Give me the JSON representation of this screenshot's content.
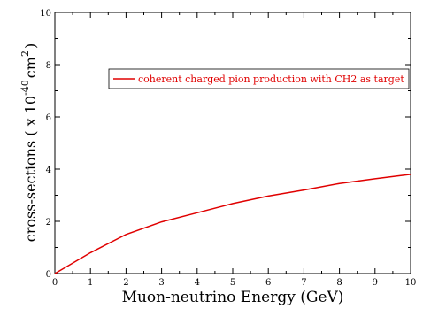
{
  "chart_data": {
    "type": "line",
    "xlabel": "Muon-neutrino Energy (GeV)",
    "ylabel": {
      "prefix": "cross-sections ( x 10",
      "exp1": "-40",
      "unit": "cm",
      "exp2": "2",
      "suffix": ")"
    },
    "xlim": [
      0,
      10
    ],
    "ylim": [
      0,
      10
    ],
    "xticks": [
      0,
      1,
      2,
      3,
      4,
      5,
      6,
      7,
      8,
      9,
      10
    ],
    "yticks": [
      0,
      2,
      4,
      6,
      8,
      10
    ],
    "grid": false,
    "legend_position": "upper-right",
    "series": [
      {
        "name": "coherent charged pion production with CH2 as target",
        "color": "#e00000",
        "x": [
          0,
          1,
          2,
          3,
          4,
          5,
          6,
          7,
          8,
          9,
          10
        ],
        "y": [
          0,
          0.8,
          1.5,
          1.98,
          2.33,
          2.68,
          2.97,
          3.2,
          3.45,
          3.63,
          3.8
        ]
      }
    ]
  }
}
